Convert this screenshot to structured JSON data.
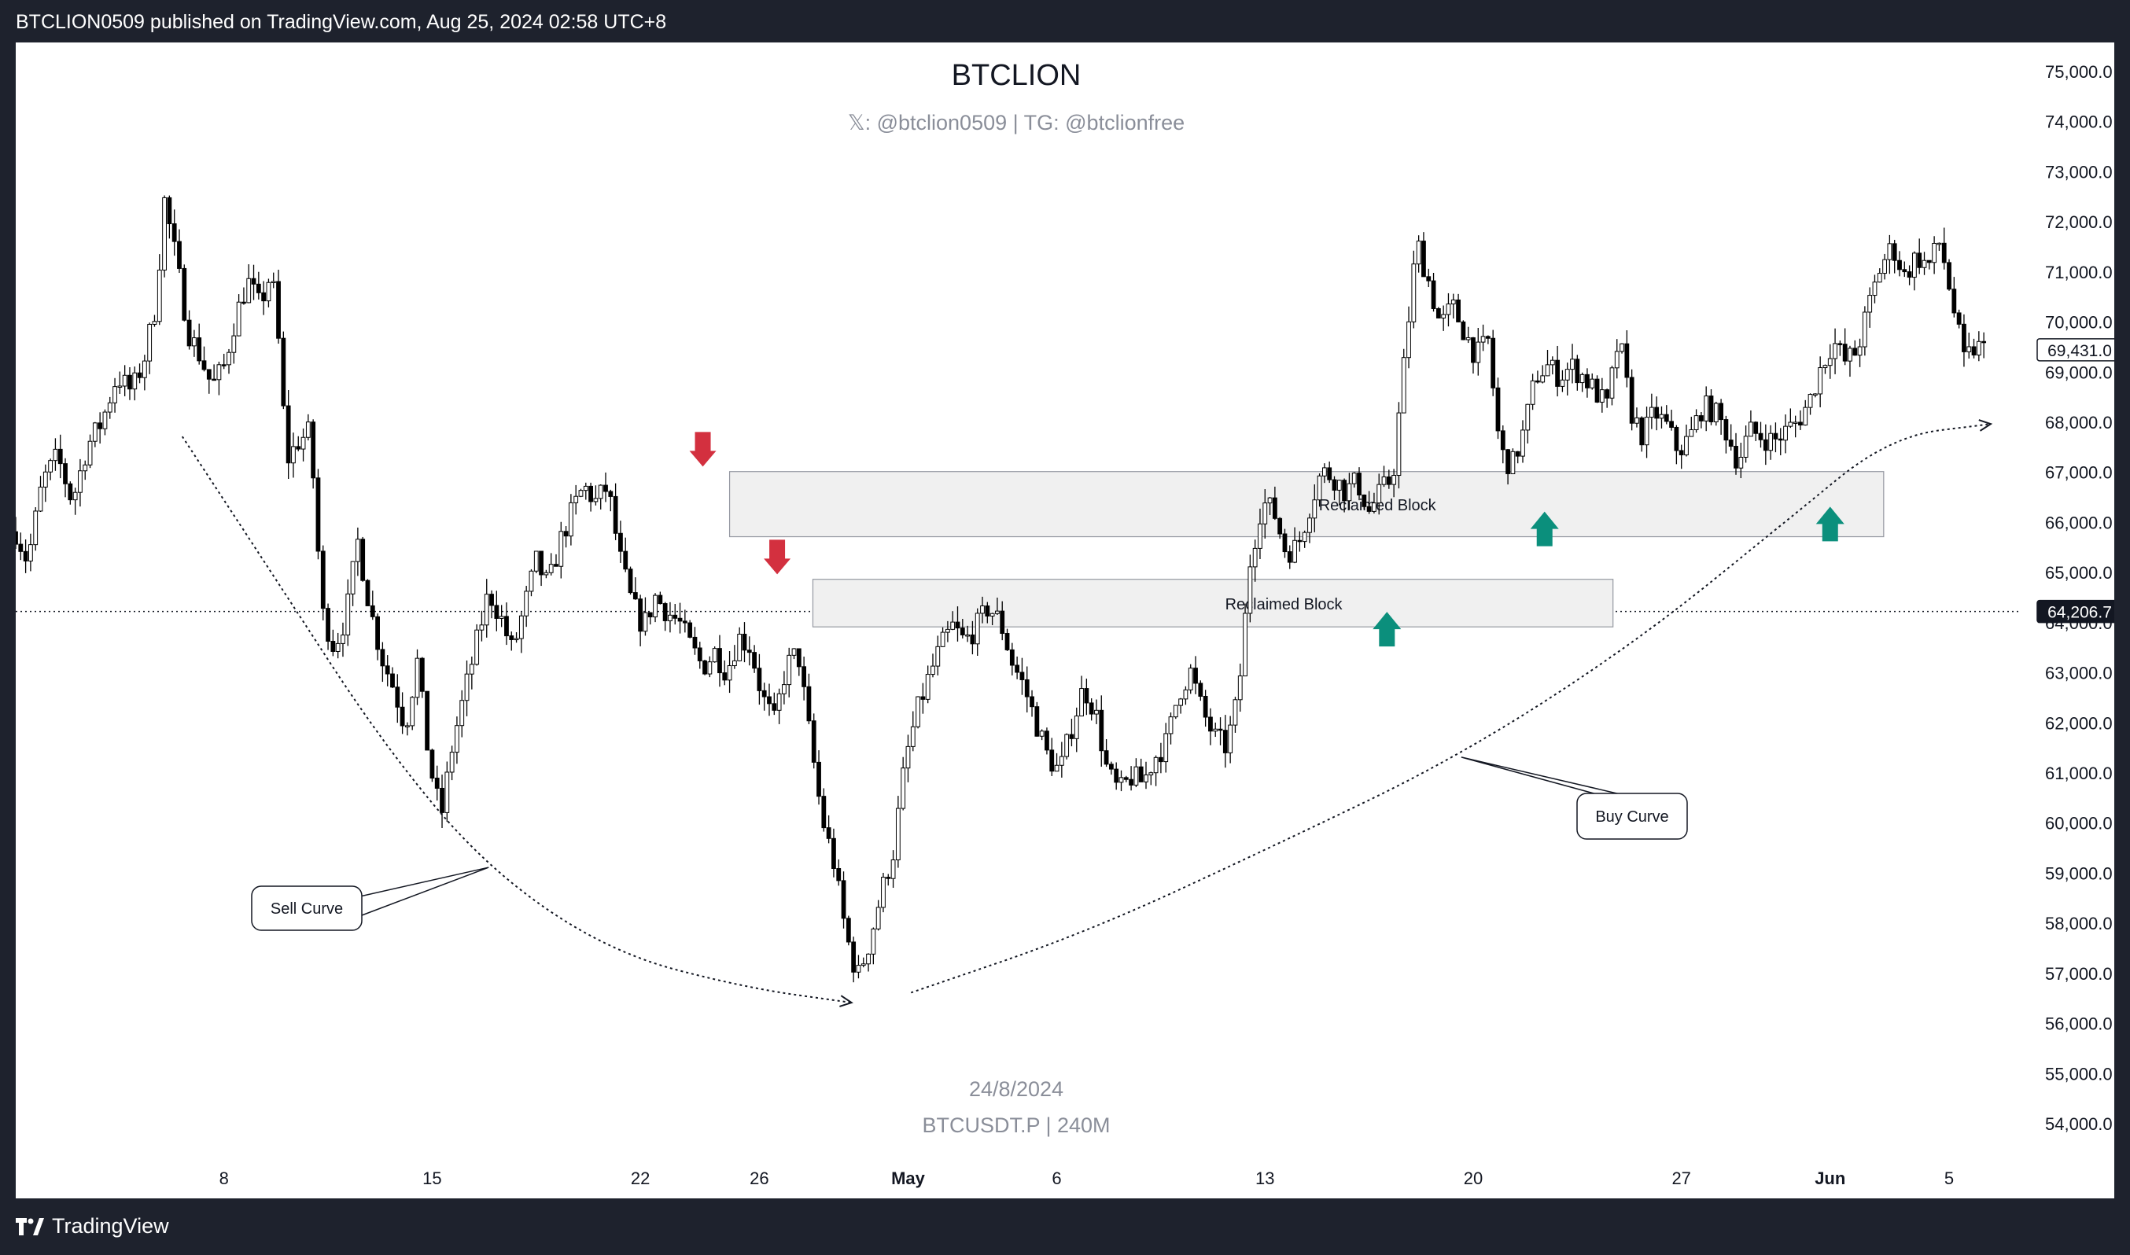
{
  "publish_bar": {
    "text": "BTCLION0509 published on TradingView.com, Aug 25, 2024 02:58 UTC+8"
  },
  "footer": {
    "brand": "TradingView",
    "logo_icon": "tradingview-logo-icon"
  },
  "colors": {
    "bg": "#1e222d",
    "panel": "#ffffff",
    "candle": "#000000",
    "arrow_down": "#d3303f",
    "arrow_up": "#0b8f7c",
    "block_fill": "#f0f0f0"
  },
  "chart_data": {
    "type": "candlestick",
    "title": "BTCLION",
    "subtitle": "𝕏: @btclion0509 | TG: @btclionfree",
    "watermark_date": "24/8/2024",
    "watermark_symbol": "BTCUSDT.P | 240M",
    "ylim": [
      53500,
      75500
    ],
    "yticks": [
      "75,000.0",
      "74,000.0",
      "73,000.0",
      "72,000.0",
      "71,000.0",
      "70,000.0",
      "69,000.0",
      "68,000.0",
      "67,000.0",
      "66,000.0",
      "65,000.0",
      "64,000.0",
      "63,000.0",
      "62,000.0",
      "61,000.0",
      "60,000.0",
      "59,000.0",
      "58,000.0",
      "57,000.0",
      "56,000.0",
      "55,000.0",
      "54,000.0"
    ],
    "ytick_values": [
      75000,
      74000,
      73000,
      72000,
      71000,
      70000,
      69000,
      68000,
      67000,
      66000,
      65000,
      64000,
      63000,
      62000,
      61000,
      60000,
      59000,
      58000,
      57000,
      56000,
      55000,
      54000
    ],
    "x_start": "Apr 1",
    "x_end": "Jun 9",
    "xticks": [
      {
        "label": "8",
        "day": 7
      },
      {
        "label": "15",
        "day": 14
      },
      {
        "label": "22",
        "day": 21
      },
      {
        "label": "26",
        "day": 25
      },
      {
        "label": "May",
        "day": 30
      },
      {
        "label": "6",
        "day": 35
      },
      {
        "label": "13",
        "day": 42
      },
      {
        "label": "20",
        "day": 49
      },
      {
        "label": "27",
        "day": 56
      },
      {
        "label": "Jun",
        "day": 61
      },
      {
        "label": "5",
        "day": 65
      }
    ],
    "price_labels": [
      {
        "value": 69431.0,
        "text": "69,431.0"
      },
      {
        "value": 64206.7,
        "text": "64,206.7"
      }
    ],
    "close_path": [
      [
        0,
        65800
      ],
      [
        0.4,
        65200
      ],
      [
        0.9,
        66800
      ],
      [
        1.4,
        67300
      ],
      [
        1.9,
        66400
      ],
      [
        2.4,
        67500
      ],
      [
        2.9,
        68000
      ],
      [
        3.4,
        68900
      ],
      [
        3.9,
        68600
      ],
      [
        4.3,
        69200
      ],
      [
        4.7,
        70300
      ],
      [
        5.0,
        72400
      ],
      [
        5.4,
        71200
      ],
      [
        5.8,
        69800
      ],
      [
        6.2,
        69300
      ],
      [
        6.6,
        68700
      ],
      [
        7.0,
        69100
      ],
      [
        7.4,
        70100
      ],
      [
        7.8,
        70800
      ],
      [
        8.2,
        70300
      ],
      [
        8.6,
        71000
      ],
      [
        8.9,
        69200
      ],
      [
        9.1,
        67200
      ],
      [
        9.5,
        67600
      ],
      [
        9.9,
        67800
      ],
      [
        10.3,
        64200
      ],
      [
        10.7,
        63500
      ],
      [
        11.1,
        64100
      ],
      [
        11.5,
        65600
      ],
      [
        11.9,
        64300
      ],
      [
        12.3,
        63300
      ],
      [
        12.7,
        62700
      ],
      [
        13.1,
        61900
      ],
      [
        13.5,
        63200
      ],
      [
        13.9,
        61200
      ],
      [
        14.3,
        60100
      ],
      [
        14.7,
        61600
      ],
      [
        15.1,
        62600
      ],
      [
        15.5,
        63600
      ],
      [
        15.9,
        64600
      ],
      [
        16.3,
        64100
      ],
      [
        16.7,
        63400
      ],
      [
        17.1,
        64300
      ],
      [
        17.5,
        65200
      ],
      [
        17.9,
        64700
      ],
      [
        18.3,
        65600
      ],
      [
        18.7,
        66200
      ],
      [
        19.1,
        66700
      ],
      [
        19.5,
        66400
      ],
      [
        19.9,
        66700
      ],
      [
        20.3,
        65300
      ],
      [
        20.7,
        64400
      ],
      [
        21.1,
        63900
      ],
      [
        21.5,
        64500
      ],
      [
        21.9,
        64200
      ],
      [
        22.3,
        64000
      ],
      [
        22.7,
        63500
      ],
      [
        23.1,
        63100
      ],
      [
        23.5,
        63400
      ],
      [
        23.9,
        63000
      ],
      [
        24.3,
        63700
      ],
      [
        24.7,
        63500
      ],
      [
        25.1,
        62500
      ],
      [
        25.5,
        62000
      ],
      [
        25.9,
        63100
      ],
      [
        26.3,
        63400
      ],
      [
        26.7,
        61700
      ],
      [
        27.1,
        60100
      ],
      [
        27.5,
        59200
      ],
      [
        27.9,
        57800
      ],
      [
        28.3,
        56900
      ],
      [
        28.7,
        57600
      ],
      [
        29.1,
        58600
      ],
      [
        29.5,
        59400
      ],
      [
        29.9,
        61200
      ],
      [
        30.3,
        62200
      ],
      [
        30.7,
        62900
      ],
      [
        31.1,
        63500
      ],
      [
        31.5,
        63900
      ],
      [
        31.9,
        63600
      ],
      [
        32.3,
        63900
      ],
      [
        32.7,
        64300
      ],
      [
        33.1,
        64000
      ],
      [
        33.5,
        63200
      ],
      [
        33.9,
        62700
      ],
      [
        34.3,
        62000
      ],
      [
        34.7,
        61300
      ],
      [
        35.1,
        61000
      ],
      [
        35.5,
        61900
      ],
      [
        35.9,
        62700
      ],
      [
        36.3,
        62200
      ],
      [
        36.7,
        61000
      ],
      [
        37.1,
        60600
      ],
      [
        37.5,
        60900
      ],
      [
        37.9,
        60800
      ],
      [
        38.3,
        61300
      ],
      [
        38.7,
        61600
      ],
      [
        39.1,
        62600
      ],
      [
        39.5,
        63000
      ],
      [
        39.9,
        62200
      ],
      [
        40.3,
        61700
      ],
      [
        40.7,
        61500
      ],
      [
        41.1,
        62500
      ],
      [
        41.5,
        65200
      ],
      [
        41.9,
        66400
      ],
      [
        42.3,
        66200
      ],
      [
        42.7,
        65400
      ],
      [
        43.1,
        65500
      ],
      [
        43.5,
        66300
      ],
      [
        43.9,
        67000
      ],
      [
        44.3,
        66900
      ],
      [
        44.7,
        66600
      ],
      [
        45.1,
        66800
      ],
      [
        45.5,
        66200
      ],
      [
        45.9,
        66600
      ],
      [
        46.3,
        66900
      ],
      [
        46.7,
        69300
      ],
      [
        47.1,
        71600
      ],
      [
        47.5,
        70800
      ],
      [
        47.9,
        69900
      ],
      [
        48.3,
        70300
      ],
      [
        48.7,
        69800
      ],
      [
        49.1,
        69300
      ],
      [
        49.5,
        69600
      ],
      [
        49.9,
        67400
      ],
      [
        50.3,
        67100
      ],
      [
        50.7,
        67800
      ],
      [
        51.1,
        68900
      ],
      [
        51.5,
        69100
      ],
      [
        51.9,
        68900
      ],
      [
        52.3,
        69100
      ],
      [
        52.7,
        68900
      ],
      [
        53.1,
        68600
      ],
      [
        53.5,
        68300
      ],
      [
        53.9,
        69700
      ],
      [
        54.3,
        68200
      ],
      [
        54.7,
        67700
      ],
      [
        55.1,
        68200
      ],
      [
        55.5,
        67900
      ],
      [
        55.9,
        67400
      ],
      [
        56.3,
        67700
      ],
      [
        56.7,
        68300
      ],
      [
        57.1,
        68200
      ],
      [
        57.5,
        67800
      ],
      [
        57.9,
        67200
      ],
      [
        58.3,
        67800
      ],
      [
        58.7,
        67700
      ],
      [
        59.1,
        67600
      ],
      [
        59.5,
        67800
      ],
      [
        59.9,
        68000
      ],
      [
        60.3,
        68400
      ],
      [
        60.7,
        69100
      ],
      [
        61.1,
        69600
      ],
      [
        61.5,
        69200
      ],
      [
        61.9,
        69400
      ],
      [
        62.3,
        70300
      ],
      [
        62.7,
        71100
      ],
      [
        63.1,
        71500
      ],
      [
        63.5,
        70900
      ],
      [
        63.9,
        71300
      ],
      [
        64.3,
        71100
      ],
      [
        64.7,
        71600
      ],
      [
        65.1,
        70400
      ],
      [
        65.5,
        69200
      ],
      [
        65.9,
        69500
      ],
      [
        66.3,
        69400
      ]
    ],
    "zones": [
      {
        "label": "Reclaimed Block",
        "day_start": 24.0,
        "day_end": 62.8,
        "top": 67000,
        "bottom": 65700
      },
      {
        "label": "Reclaimed Block",
        "day_start": 26.8,
        "day_end": 53.7,
        "top": 64850,
        "bottom": 63900
      }
    ],
    "arrows_down": [
      {
        "day": 23.1,
        "price": 67100
      },
      {
        "day": 25.6,
        "price": 64950
      }
    ],
    "arrows_up": [
      {
        "day": 46.1,
        "price": 64200
      },
      {
        "day": 51.4,
        "price": 66200
      },
      {
        "day": 61.0,
        "price": 66300
      }
    ],
    "curves": [
      {
        "label": "Sell Curve",
        "points": [
          [
            5.6,
            67700
          ],
          [
            8.8,
            64800
          ],
          [
            12.3,
            61600
          ],
          [
            15.8,
            59100
          ],
          [
            20.0,
            57400
          ],
          [
            24.5,
            56700
          ],
          [
            28.1,
            56400
          ]
        ]
      },
      {
        "label": "Buy Curve",
        "points": [
          [
            30.1,
            56600
          ],
          [
            36.0,
            57800
          ],
          [
            42.2,
            59500
          ],
          [
            48.5,
            61300
          ],
          [
            54.5,
            63600
          ],
          [
            59.5,
            66000
          ],
          [
            63.0,
            67700
          ],
          [
            66.4,
            67950
          ]
        ]
      }
    ],
    "callouts": [
      {
        "label": "Sell Curve"
      },
      {
        "label": "Buy Curve"
      }
    ]
  }
}
